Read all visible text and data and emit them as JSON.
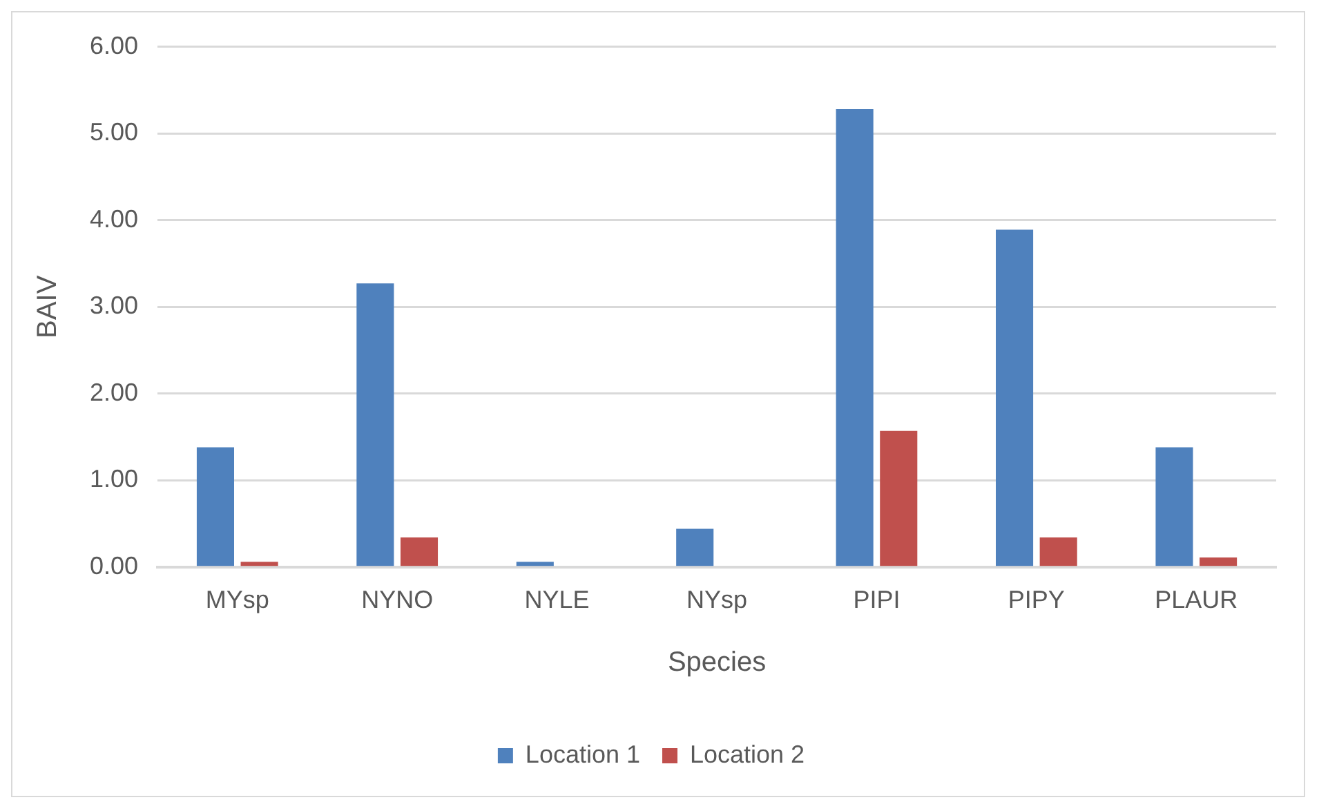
{
  "chart_data": {
    "type": "bar",
    "xlabel": "Species",
    "ylabel": "BAIV",
    "categories": [
      "MYsp",
      "NYNO",
      "NYLE",
      "NYsp",
      "PIPI",
      "PIPY",
      "PLAUR"
    ],
    "series": [
      {
        "name": "Location 1",
        "color": "#4f81bd",
        "values": [
          1.38,
          3.27,
          0.06,
          0.44,
          5.28,
          3.89,
          1.38
        ]
      },
      {
        "name": "Location 2",
        "color": "#c0504d",
        "values": [
          0.06,
          0.34,
          0,
          0,
          1.57,
          0.34,
          0.11
        ]
      }
    ],
    "ylim": [
      0,
      6
    ],
    "yticks": [
      {
        "value": 0,
        "label": "0.00"
      },
      {
        "value": 1,
        "label": "1.00"
      },
      {
        "value": 2,
        "label": "2.00"
      },
      {
        "value": 3,
        "label": "3.00"
      },
      {
        "value": 4,
        "label": "4.00"
      },
      {
        "value": 5,
        "label": "5.00"
      },
      {
        "value": 6,
        "label": "6.00"
      }
    ],
    "grid": "y",
    "legend": "bottom"
  }
}
